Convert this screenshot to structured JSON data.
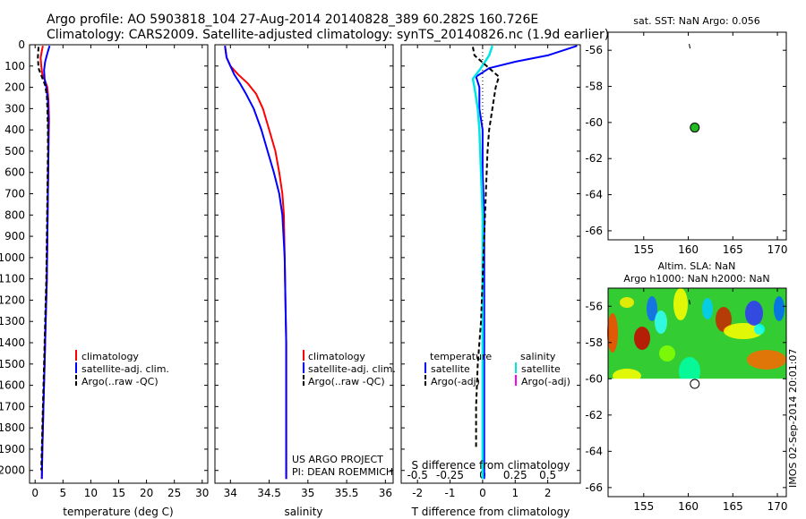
{
  "header": {
    "line1": "Argo profile: AO 5903818_104 27-Aug-2014 20140828_389 60.282S 160.726E",
    "line2": "Climatology: CARS2009. Satellite-adjusted climatology: synTS_20140826.nc (1.9d earlier)"
  },
  "credit": [
    "US ARGO PROJECT",
    "PI: DEAN ROEMMICH"
  ],
  "stamp": "IMOS 02-Sep-2014 20:01:07",
  "colors": {
    "climatology": "#ff0000",
    "satellite": "#0000ff",
    "argo": "#000000",
    "sal_satellite": "#00e5e5",
    "sal_argo": "#ff00ff",
    "marker_fill": "#22bb22"
  },
  "chart_data": [
    {
      "type": "line",
      "id": "temperature",
      "xlabel": "temperature (deg C)",
      "xlim": [
        -1,
        31
      ],
      "ylim": [
        2060,
        0
      ],
      "xticks": [
        0,
        5,
        10,
        15,
        20,
        25,
        30
      ],
      "yticks": [
        0,
        100,
        200,
        300,
        400,
        500,
        600,
        700,
        800,
        900,
        1000,
        1100,
        1200,
        1300,
        1400,
        1500,
        1600,
        1700,
        1800,
        1900,
        2000
      ],
      "legend": [
        "climatology",
        "satellite-adj. clim.",
        "Argo(..raw -QC)"
      ],
      "series": [
        {
          "name": "climatology",
          "style": "climatology",
          "points": [
            [
              1.4,
              5
            ],
            [
              1.2,
              30
            ],
            [
              1.0,
              60
            ],
            [
              1.1,
              100
            ],
            [
              1.3,
              140
            ],
            [
              1.8,
              170
            ],
            [
              2.2,
              200
            ],
            [
              2.4,
              260
            ],
            [
              2.5,
              350
            ],
            [
              2.4,
              500
            ],
            [
              2.3,
              700
            ],
            [
              2.2,
              900
            ],
            [
              2.1,
              1100
            ],
            [
              1.9,
              1300
            ],
            [
              1.7,
              1500
            ],
            [
              1.5,
              1700
            ],
            [
              1.3,
              1900
            ],
            [
              1.2,
              2040
            ]
          ]
        },
        {
          "name": "satellite-adj. clim.",
          "style": "satellite",
          "points": [
            [
              2.6,
              5
            ],
            [
              2.2,
              40
            ],
            [
              1.8,
              80
            ],
            [
              1.6,
              120
            ],
            [
              1.7,
              160
            ],
            [
              2.0,
              200
            ],
            [
              2.3,
              260
            ],
            [
              2.4,
              350
            ],
            [
              2.4,
              500
            ],
            [
              2.3,
              700
            ],
            [
              2.2,
              900
            ],
            [
              2.1,
              1100
            ],
            [
              1.9,
              1300
            ],
            [
              1.7,
              1500
            ],
            [
              1.5,
              1700
            ],
            [
              1.3,
              1900
            ],
            [
              1.2,
              2040
            ]
          ]
        },
        {
          "name": "Argo(..raw -QC)",
          "style": "argo",
          "points": [
            [
              0.6,
              10
            ],
            [
              0.5,
              60
            ],
            [
              0.6,
              110
            ],
            [
              1.2,
              150
            ],
            [
              1.8,
              190
            ],
            [
              2.1,
              240
            ],
            [
              2.2,
              300
            ],
            [
              2.3,
              400
            ],
            [
              2.3,
              500
            ],
            [
              2.2,
              700
            ],
            [
              2.1,
              900
            ],
            [
              2.0,
              1100
            ],
            [
              1.8,
              1300
            ],
            [
              1.6,
              1500
            ],
            [
              1.4,
              1700
            ],
            [
              1.2,
              1900
            ],
            [
              1.1,
              2000
            ]
          ]
        }
      ]
    },
    {
      "type": "line",
      "id": "salinity",
      "xlabel": "salinity",
      "xlim": [
        33.8,
        36.1
      ],
      "ylim": [
        2060,
        0
      ],
      "xticks": [
        34,
        34.5,
        35,
        35.5,
        36
      ],
      "legend": [
        "climatology",
        "satellite-adj. clim.",
        "Argo(..raw -QC)"
      ],
      "series": [
        {
          "name": "climatology",
          "style": "climatology",
          "points": [
            [
              33.93,
              5
            ],
            [
              33.95,
              60
            ],
            [
              34.0,
              100
            ],
            [
              34.1,
              140
            ],
            [
              34.22,
              180
            ],
            [
              34.33,
              230
            ],
            [
              34.42,
              300
            ],
            [
              34.5,
              400
            ],
            [
              34.58,
              500
            ],
            [
              34.63,
              600
            ],
            [
              34.67,
              700
            ],
            [
              34.69,
              800
            ],
            [
              34.7,
              1000
            ],
            [
              34.71,
              1200
            ],
            [
              34.72,
              1400
            ],
            [
              34.72,
              1700
            ],
            [
              34.72,
              2040
            ]
          ]
        },
        {
          "name": "satellite-adj. clim.",
          "style": "satellite",
          "points": [
            [
              33.93,
              5
            ],
            [
              33.95,
              60
            ],
            [
              34.0,
              100
            ],
            [
              34.05,
              140
            ],
            [
              34.12,
              180
            ],
            [
              34.2,
              230
            ],
            [
              34.3,
              300
            ],
            [
              34.4,
              400
            ],
            [
              34.48,
              500
            ],
            [
              34.56,
              600
            ],
            [
              34.63,
              700
            ],
            [
              34.67,
              800
            ],
            [
              34.7,
              1000
            ],
            [
              34.71,
              1200
            ],
            [
              34.72,
              1400
            ],
            [
              34.72,
              1700
            ],
            [
              34.72,
              2040
            ]
          ]
        }
      ]
    },
    {
      "type": "line",
      "id": "difference",
      "xlabel": "T difference from climatology",
      "xlabel2": "S difference from climatology",
      "xlim": [
        -2.5,
        3.0
      ],
      "ylim": [
        2060,
        0
      ],
      "xticks": [
        -2,
        -1,
        0,
        1,
        2
      ],
      "xticks2": [
        "-0.5",
        "-0.25",
        "0",
        "0.25",
        "0.5"
      ],
      "legend_left": [
        "temperature",
        "satellite",
        "Argo(-adj)"
      ],
      "legend_right": [
        "salinity",
        "satellite",
        "Argo(-adj)"
      ],
      "series": [
        {
          "name": "satellite",
          "style": "satellite",
          "points": [
            [
              2.9,
              5
            ],
            [
              2.6,
              20
            ],
            [
              2.0,
              50
            ],
            [
              1.0,
              80
            ],
            [
              0.2,
              110
            ],
            [
              -0.2,
              150
            ],
            [
              -0.1,
              200
            ],
            [
              -0.1,
              300
            ],
            [
              0,
              400
            ],
            [
              0,
              600
            ],
            [
              0.05,
              800
            ],
            [
              0.05,
              1000
            ],
            [
              0.05,
              1200
            ],
            [
              0.05,
              1400
            ],
            [
              0.05,
              1600
            ],
            [
              0.05,
              1800
            ],
            [
              0.05,
              2040
            ]
          ]
        },
        {
          "name": "salinity satellite",
          "style": "sal_satellite",
          "points": [
            [
              0.3,
              5
            ],
            [
              0.2,
              50
            ],
            [
              -0.1,
              120
            ],
            [
              -0.3,
              160
            ],
            [
              -0.25,
              200
            ],
            [
              -0.15,
              300
            ],
            [
              -0.1,
              400
            ],
            [
              -0.05,
              600
            ],
            [
              0,
              800
            ],
            [
              0,
              1000
            ],
            [
              0,
              1200
            ],
            [
              0,
              1400
            ],
            [
              0,
              1700
            ],
            [
              0,
              2040
            ]
          ]
        },
        {
          "name": "Argo(-adj)",
          "style": "argo",
          "points": [
            [
              -0.3,
              10
            ],
            [
              -0.25,
              50
            ],
            [
              0.5,
              150
            ],
            [
              0.4,
              200
            ],
            [
              0.3,
              300
            ],
            [
              0.2,
              400
            ],
            [
              0.15,
              500
            ],
            [
              0.1,
              700
            ],
            [
              0.05,
              900
            ],
            [
              0,
              1100
            ],
            [
              -0.05,
              1300
            ],
            [
              -0.15,
              1500
            ],
            [
              -0.2,
              1700
            ],
            [
              -0.2,
              1900
            ]
          ]
        }
      ]
    },
    {
      "type": "scatter",
      "id": "sst-map",
      "title": "sat. SST: NaN Argo: 0.056",
      "xlim": [
        151,
        171
      ],
      "ylim": [
        -66.5,
        -55
      ],
      "xticks": [
        155,
        160,
        165,
        170
      ],
      "yticks": [
        -56,
        -58,
        -60,
        -62,
        -64,
        -66
      ],
      "points": [
        [
          160.726,
          -60.282
        ]
      ]
    },
    {
      "type": "heatmap",
      "id": "sla-map",
      "title": "Altim. SLA: NaN",
      "title2": "Argo h1000: NaN h2000: NaN",
      "xlim": [
        151,
        171
      ],
      "ylim": [
        -66.5,
        -55
      ],
      "xticks": [
        155,
        160,
        165,
        170
      ],
      "yticks": [
        -56,
        -58,
        -60,
        -62,
        -64,
        -66
      ],
      "field_lat_range": [
        -60,
        -55
      ],
      "points": [
        [
          160.726,
          -60.282
        ]
      ]
    }
  ]
}
